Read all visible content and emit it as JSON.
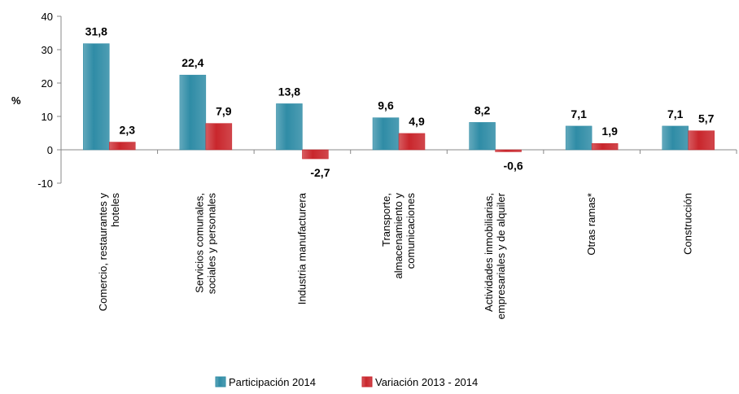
{
  "chart_data": {
    "type": "bar",
    "y_label": "%",
    "categories": [
      "Comercio, restaurantes y\nhoteles",
      "Servicios comunales,\nsociales y personales",
      "Industria manufacturera",
      "Transporte,\nalmacenamiento y\ncomunicaciones",
      "Actividades inmobiliarias,\nempresariales y de alquiler",
      "Otras ramas*",
      "Construcción"
    ],
    "series": [
      {
        "name": "Participación 2014",
        "color": "#2f8ca6",
        "label_color": "#1f3a5f",
        "values": [
          31.8,
          22.4,
          13.8,
          9.6,
          8.2,
          7.1,
          7.1
        ],
        "value_labels": [
          "31,8",
          "22,4",
          "13,8",
          "9,6",
          "8,2",
          "7,1",
          "7,1"
        ]
      },
      {
        "name": "Variación 2013 - 2014",
        "color": "#c9262c",
        "label_color": "#c00000",
        "values": [
          2.3,
          7.9,
          -2.7,
          4.9,
          -0.6,
          1.9,
          5.7
        ],
        "value_labels": [
          "2,3",
          "7,9",
          "-2,7",
          "4,9",
          "-0,6",
          "1,9",
          "5,7"
        ]
      }
    ],
    "ylim": [
      -10,
      40
    ],
    "yticks": [
      -10,
      0,
      10,
      20,
      30,
      40
    ],
    "legend": "bottom"
  }
}
